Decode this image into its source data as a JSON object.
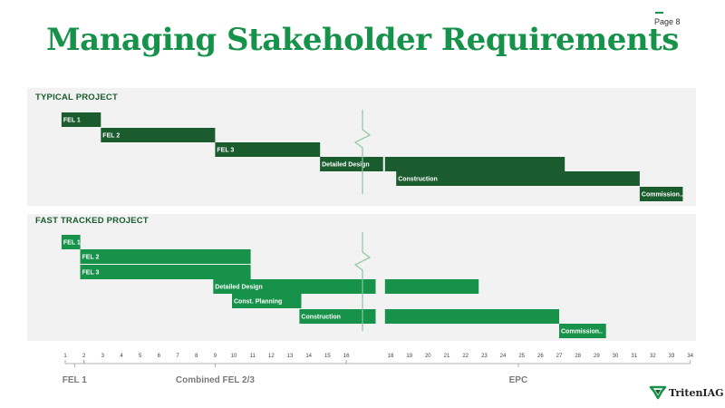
{
  "page": {
    "title": "Managing Stakeholder Requirements",
    "page_number": "Page 8",
    "brand": "TritenIAG",
    "colors": {
      "title": "#17924a",
      "typical_bar": "#1a5c2e",
      "fast_bar": "#17924a",
      "panel": "#f2f2f2",
      "break_line": "#8bc79c"
    }
  },
  "chart_data": {
    "type": "gantt",
    "x_unit": "timeline period",
    "ticks": [
      1,
      2,
      3,
      4,
      5,
      6,
      7,
      8,
      9,
      10,
      11,
      12,
      13,
      14,
      15,
      16,
      18,
      19,
      20,
      21,
      22,
      23,
      24,
      25,
      26,
      27,
      28,
      29,
      30,
      31,
      32,
      33,
      34
    ],
    "tick_labels": [
      "1",
      "2",
      "3",
      "4",
      "5",
      "6",
      "7",
      "8",
      "9",
      "10",
      "11",
      "12",
      "13",
      "14",
      "15",
      "16",
      "18",
      "19",
      "20",
      "21",
      "22",
      "23",
      "24",
      "25",
      "26",
      "27",
      "28",
      "29",
      "30",
      "31",
      "32",
      "33",
      "34"
    ],
    "axis_break_after": 16,
    "phases": [
      {
        "label": "FEL 1",
        "start": 1,
        "end": 2
      },
      {
        "label": "Combined FEL 2/3",
        "start": 2,
        "end": 16
      },
      {
        "label": "EPC",
        "start": 16,
        "end": 34
      }
    ],
    "panels": [
      {
        "label": "TYPICAL PROJECT",
        "tasks": [
          {
            "label": "FEL 1",
            "start": 0.8,
            "end": 2.9
          },
          {
            "label": "FEL 2",
            "start": 2.9,
            "end": 9.0
          },
          {
            "label": "FEL 3",
            "start": 9.0,
            "end": 14.6
          },
          {
            "label": "Detailed Design",
            "start": 14.6,
            "end": 17.6
          },
          {
            "label": "",
            "start": 17.7,
            "end": 27.3
          },
          {
            "label": "Construction",
            "start": 18.3,
            "end": 31.3
          },
          {
            "label": "Commission..",
            "start": 31.3,
            "end": 33.6
          }
        ]
      },
      {
        "label": "FAST TRACKED PROJECT",
        "tasks": [
          {
            "label": "FEL 1",
            "start": 0.8,
            "end": 1.8
          },
          {
            "label": "FEL 2",
            "start": 1.8,
            "end": 10.9
          },
          {
            "label": "FEL 3",
            "start": 1.8,
            "end": 10.9
          },
          {
            "label": "Detailed Design",
            "start": 8.9,
            "end": 17.2
          },
          {
            "label": "Const. Planning",
            "start": 9.9,
            "end": 13.6
          },
          {
            "label": "Construction",
            "start": 13.5,
            "end": 17.2
          },
          {
            "label": "",
            "start": 17.7,
            "end": 22.7
          },
          {
            "label": "",
            "start": 17.7,
            "end": 27.0
          },
          {
            "label": "Commission..",
            "start": 27.0,
            "end": 29.5
          }
        ]
      }
    ]
  }
}
